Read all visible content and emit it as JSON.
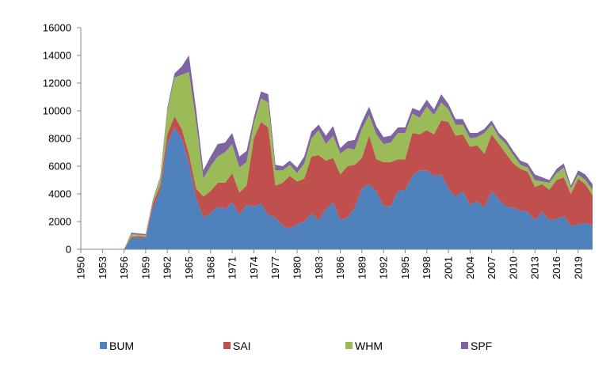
{
  "chart_data": {
    "type": "area",
    "stacked": true,
    "x": [
      1950,
      1951,
      1952,
      1953,
      1954,
      1955,
      1956,
      1957,
      1958,
      1959,
      1960,
      1961,
      1962,
      1963,
      1964,
      1965,
      1966,
      1967,
      1968,
      1969,
      1970,
      1971,
      1972,
      1973,
      1974,
      1975,
      1976,
      1977,
      1978,
      1979,
      1980,
      1981,
      1982,
      1983,
      1984,
      1985,
      1986,
      1987,
      1988,
      1989,
      1990,
      1991,
      1992,
      1993,
      1994,
      1995,
      1996,
      1997,
      1998,
      1999,
      2000,
      2001,
      2002,
      2003,
      2004,
      2005,
      2006,
      2007,
      2008,
      2009,
      2010,
      2011,
      2012,
      2013,
      2014,
      2015,
      2016,
      2017,
      2018,
      2019,
      2020,
      2021
    ],
    "x_tick_labels": [
      "1950",
      "1953",
      "1956",
      "1959",
      "1962",
      "1965",
      "1968",
      "1971",
      "1974",
      "1977",
      "1980",
      "1983",
      "1986",
      "1989",
      "1992",
      "1995",
      "1998",
      "2001",
      "2004",
      "2007",
      "2010",
      "2013",
      "2016",
      "2019"
    ],
    "ylim": [
      0,
      16000
    ],
    "y_ticks": [
      0,
      2000,
      4000,
      6000,
      8000,
      10000,
      12000,
      14000,
      16000
    ],
    "legend_position": "bottom",
    "grid": false,
    "series": [
      {
        "name": "BUM",
        "color": "#4f81bd",
        "values": [
          0,
          0,
          0,
          0,
          0,
          0,
          0,
          800,
          850,
          800,
          3000,
          4200,
          7600,
          8800,
          8000,
          6200,
          3700,
          2300,
          2600,
          3100,
          2900,
          3400,
          2500,
          3200,
          3100,
          3300,
          2500,
          2300,
          1700,
          1500,
          1800,
          2000,
          2600,
          2100,
          2900,
          3400,
          2100,
          2300,
          3000,
          4400,
          4700,
          4200,
          3100,
          3100,
          4200,
          4300,
          5300,
          5700,
          5700,
          5300,
          5400,
          4400,
          3800,
          4200,
          3200,
          3500,
          3000,
          4200,
          3600,
          3100,
          3000,
          2800,
          2700,
          2100,
          2700,
          2100,
          2200,
          2400,
          1700,
          1800,
          1900,
          1700
        ]
      },
      {
        "name": "SAI",
        "color": "#c0504d",
        "values": [
          0,
          0,
          0,
          0,
          0,
          0,
          0,
          100,
          100,
          100,
          300,
          400,
          700,
          800,
          700,
          700,
          700,
          1500,
          1600,
          1700,
          1900,
          2100,
          1600,
          1400,
          4900,
          5900,
          6300,
          2300,
          3100,
          3800,
          3100,
          3100,
          4100,
          4700,
          3500,
          3200,
          3300,
          3700,
          3100,
          2200,
          3500,
          2300,
          3200,
          3200,
          2300,
          2200,
          3100,
          2600,
          2900,
          3000,
          3900,
          4800,
          4400,
          4100,
          4200,
          4000,
          3900,
          4100,
          4000,
          3800,
          3200,
          3000,
          2900,
          2400,
          2000,
          2200,
          2800,
          2800,
          2300,
          3300,
          2800,
          2200
        ]
      },
      {
        "name": "WHM",
        "color": "#9bbb59",
        "values": [
          0,
          0,
          0,
          0,
          0,
          0,
          0,
          200,
          100,
          100,
          200,
          500,
          1700,
          2800,
          3900,
          5900,
          4800,
          1300,
          1800,
          1900,
          2200,
          2100,
          1800,
          1700,
          1100,
          1700,
          1800,
          1100,
          900,
          800,
          600,
          1100,
          1300,
          1800,
          1200,
          1600,
          1500,
          1300,
          1100,
          2100,
          1500,
          1800,
          1300,
          1400,
          1900,
          1900,
          1400,
          1200,
          1700,
          1400,
          1300,
          900,
          800,
          700,
          600,
          600,
          1500,
          700,
          500,
          700,
          600,
          300,
          300,
          500,
          200,
          500,
          500,
          700,
          400,
          300,
          300,
          400
        ]
      },
      {
        "name": "SPF",
        "color": "#8064a2",
        "values": [
          0,
          0,
          0,
          0,
          0,
          0,
          0,
          100,
          100,
          100,
          100,
          100,
          200,
          300,
          600,
          1200,
          900,
          600,
          700,
          900,
          700,
          800,
          800,
          800,
          400,
          500,
          600,
          400,
          300,
          300,
          400,
          500,
          500,
          400,
          600,
          700,
          400,
          500,
          700,
          500,
          600,
          600,
          500,
          500,
          400,
          400,
          400,
          500,
          500,
          400,
          600,
          400,
          400,
          400,
          400,
          300,
          300,
          300,
          300,
          300,
          300,
          300,
          300,
          400,
          300,
          200,
          300,
          300,
          200,
          300,
          400,
          400
        ]
      }
    ]
  }
}
